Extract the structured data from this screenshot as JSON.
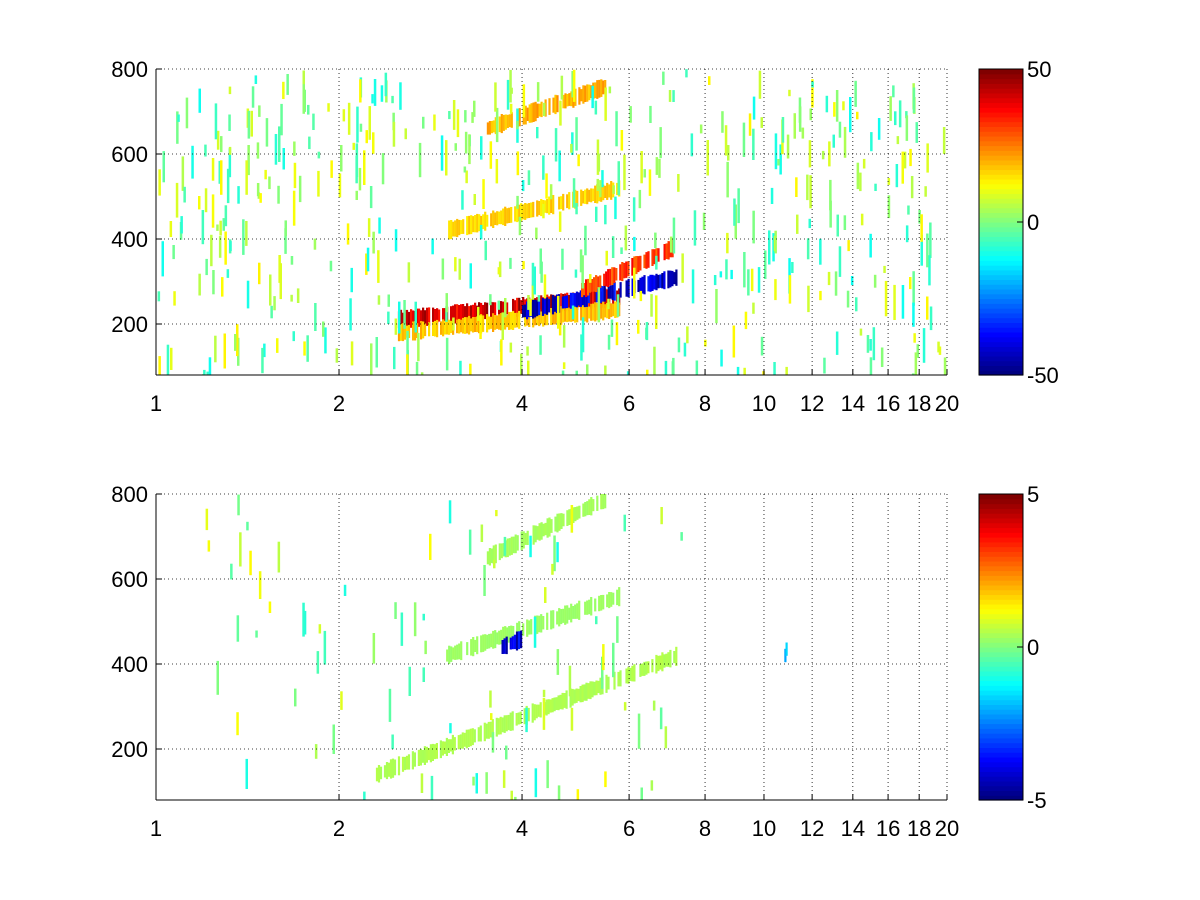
{
  "chart_data": [
    {
      "type": "heatmap",
      "title": "",
      "xlabel": "",
      "ylabel": "",
      "xlim": [
        1,
        20
      ],
      "ylim": [
        80,
        800
      ],
      "x_scale": "log",
      "x_ticks": [
        1,
        2,
        4,
        6,
        8,
        10,
        12,
        14,
        16,
        18,
        20
      ],
      "x_tick_labels": [
        "1",
        "2",
        "4",
        "6",
        "8",
        "10",
        "12",
        "14",
        "16",
        "18",
        "20"
      ],
      "y_ticks": [
        200,
        400,
        600,
        800
      ],
      "y_tick_labels": [
        "200",
        "400",
        "600",
        "800"
      ],
      "grid": true,
      "colormap": "jet",
      "clim": [
        -50,
        50
      ],
      "colorbar_ticks": [
        50,
        0,
        -50
      ],
      "colorbar_tick_labels": [
        "50",
        "0",
        "-50"
      ],
      "features": [
        {
          "x_range": [
            2.5,
            5.8
          ],
          "y_start": 210,
          "y_end": 265,
          "value": 45
        },
        {
          "x_range": [
            2.5,
            5.8
          ],
          "y_start": 180,
          "y_end": 235,
          "value": 20
        },
        {
          "x_range": [
            4.0,
            7.2
          ],
          "y_start": 230,
          "y_end": 310,
          "value": -45
        },
        {
          "x_range": [
            5.0,
            7.1
          ],
          "y_start": 280,
          "y_end": 380,
          "value": 35
        },
        {
          "x_range": [
            3.0,
            5.8
          ],
          "y_start": 420,
          "y_end": 520,
          "value": 18
        },
        {
          "x_range": [
            3.5,
            5.5
          ],
          "y_start": 660,
          "y_end": 760,
          "value": 22
        }
      ]
    },
    {
      "type": "heatmap",
      "title": "",
      "xlabel": "",
      "ylabel": "",
      "xlim": [
        1,
        20
      ],
      "ylim": [
        80,
        800
      ],
      "x_scale": "log",
      "x_ticks": [
        1,
        2,
        4,
        6,
        8,
        10,
        12,
        14,
        16,
        18,
        20
      ],
      "x_tick_labels": [
        "1",
        "2",
        "4",
        "6",
        "8",
        "10",
        "12",
        "14",
        "16",
        "18",
        "20"
      ],
      "y_ticks": [
        200,
        400,
        600,
        800
      ],
      "y_tick_labels": [
        "200",
        "400",
        "600",
        "800"
      ],
      "grid": true,
      "colormap": "jet",
      "clim": [
        -5,
        5
      ],
      "colorbar_ticks": [
        5,
        0,
        -5
      ],
      "colorbar_tick_labels": [
        "5",
        "0",
        "-5"
      ],
      "features": [
        {
          "x_range": [
            2.3,
            7.2
          ],
          "y_start": 140,
          "y_end": 420,
          "value": 0.5
        },
        {
          "x_range": [
            3.0,
            5.8
          ],
          "y_start": 420,
          "y_end": 560,
          "value": 0.3
        },
        {
          "x_range": [
            3.5,
            5.5
          ],
          "y_start": 650,
          "y_end": 790,
          "value": 0.4
        },
        {
          "x_range": [
            3.7,
            4.0
          ],
          "y_start": 440,
          "y_end": 460,
          "value": -4.5
        },
        {
          "x_range": [
            10.8,
            10.9
          ],
          "y_start": 420,
          "y_end": 450,
          "value": -2.0
        }
      ]
    }
  ]
}
